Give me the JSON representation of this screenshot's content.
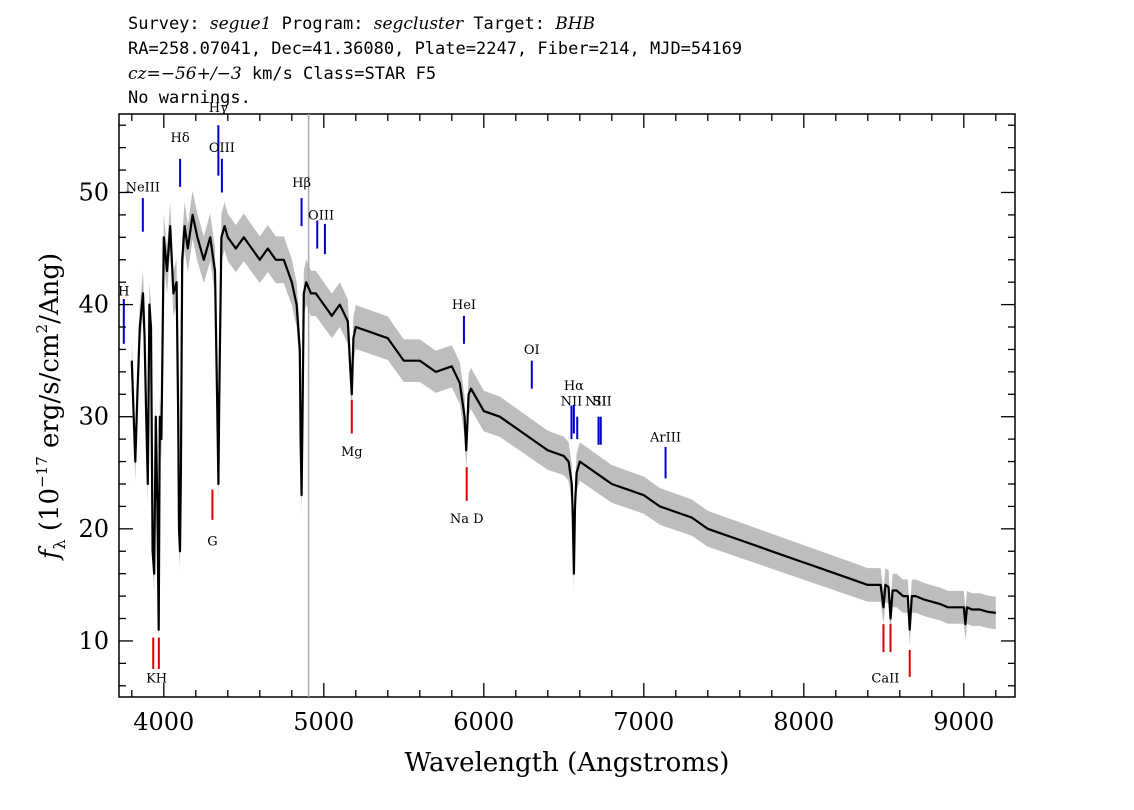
{
  "header": {
    "line1": {
      "survey_label": "Survey: ",
      "survey": "segue1",
      "program_label": " Program: ",
      "program": "segcluster",
      "target_label": " Target: ",
      "target": "BHB"
    },
    "line2": "RA=258.07041, Dec=41.36080, Plate=2247, Fiber=214, MJD=54169",
    "line3": {
      "cz_label": "cz",
      "cz_value": "=−56+/−3",
      "rest": " km/s Class=STAR F5"
    },
    "line4": "No warnings."
  },
  "colors": {
    "emission": "#0000cc",
    "absorption": "#dd0000",
    "spectrum": "#000000",
    "error_band": "#bdbdbd",
    "marker_line": "#aaaaaa"
  },
  "chart_data": {
    "type": "line",
    "xlabel": "Wavelength (Angstroms)",
    "ylabel": "f_λ (10^-17 erg/s/cm^2/Ang)",
    "xlim": [
      3720,
      9320
    ],
    "ylim": [
      5,
      57
    ],
    "x_ticks": [
      4000,
      5000,
      6000,
      7000,
      8000,
      9000
    ],
    "y_ticks": [
      10,
      20,
      30,
      40,
      50
    ],
    "vertical_marker_x": 4905,
    "series": [
      {
        "role": "flux",
        "x": [
          3800,
          3812,
          3822,
          3835,
          3850,
          3870,
          3880,
          3890,
          3900,
          3910,
          3920,
          3930,
          3940,
          3950,
          3960,
          3968,
          3975,
          3985,
          4000,
          4020,
          4040,
          4060,
          4080,
          4090,
          4095,
          4101,
          4107,
          4115,
          4130,
          4150,
          4180,
          4210,
          4250,
          4290,
          4320,
          4335,
          4341,
          4347,
          4360,
          4380,
          4400,
          4450,
          4500,
          4550,
          4600,
          4650,
          4700,
          4750,
          4800,
          4830,
          4850,
          4855,
          4861,
          4867,
          4875,
          4890,
          4920,
          4950,
          5000,
          5050,
          5100,
          5150,
          5167,
          5175,
          5185,
          5200,
          5300,
          5400,
          5500,
          5600,
          5700,
          5800,
          5850,
          5880,
          5890,
          5896,
          5905,
          5920,
          6000,
          6100,
          6200,
          6300,
          6400,
          6500,
          6530,
          6550,
          6556,
          6563,
          6570,
          6580,
          6600,
          6650,
          6700,
          6800,
          6900,
          7000,
          7100,
          7200,
          7300,
          7400,
          7500,
          7600,
          7700,
          7800,
          7900,
          8000,
          8100,
          8200,
          8300,
          8400,
          8480,
          8498,
          8510,
          8530,
          8542,
          8555,
          8580,
          8620,
          8650,
          8662,
          8675,
          8700,
          8750,
          8800,
          8850,
          8900,
          8950,
          9000,
          9010,
          9020,
          9050,
          9100,
          9150,
          9200
        ],
        "y": [
          35,
          30,
          26,
          32,
          38,
          41,
          37,
          30,
          24,
          40,
          38,
          18,
          16,
          30,
          22,
          11,
          30,
          28,
          46,
          43,
          47,
          41,
          42,
          30,
          20,
          18,
          25,
          44,
          47,
          45,
          48,
          46,
          44,
          46,
          43,
          30,
          24,
          32,
          46,
          47,
          46,
          45,
          46,
          45,
          44,
          45,
          44,
          44,
          42,
          40,
          36,
          28,
          23,
          30,
          41,
          42,
          41,
          41,
          40,
          39,
          40,
          38.5,
          34,
          32,
          37,
          38,
          37.5,
          37,
          35,
          35,
          34,
          34.5,
          33,
          30,
          27,
          29,
          32,
          32.5,
          30.5,
          30,
          29,
          28,
          27,
          26.5,
          26,
          24,
          21,
          16,
          22,
          25,
          26,
          25.5,
          25,
          24,
          23.5,
          23,
          22,
          21.5,
          21,
          20,
          19.5,
          19,
          18.5,
          18,
          17.5,
          17,
          16.5,
          16,
          15.5,
          15,
          15,
          13,
          15,
          14.8,
          12,
          14.5,
          14.5,
          14,
          14,
          11,
          14,
          14,
          13.7,
          13.5,
          13.3,
          13,
          13,
          13,
          11.5,
          13,
          12.8,
          12.8,
          12.6,
          12.5
        ]
      }
    ],
    "lines": [
      {
        "label": "H",
        "wave": 3750,
        "kind": "emission",
        "y1": 36.5,
        "y2": 40.5,
        "label_y": 40.8
      },
      {
        "label": "NeIII",
        "wave": 3869,
        "kind": "emission",
        "y1": 46.5,
        "y2": 49.5,
        "label_y": 50.1
      },
      {
        "label": "Hδ",
        "wave": 4102,
        "kind": "emission",
        "y1": 50.5,
        "y2": 53,
        "label_y": 54.5
      },
      {
        "label": "Hγ",
        "wave": 4341,
        "kind": "emission",
        "y1": 51.5,
        "y2": 56,
        "label_y": 57.2
      },
      {
        "label": "OIII",
        "wave": 4363,
        "kind": "emission",
        "y1": 50,
        "y2": 53,
        "label_y": 53.6
      },
      {
        "label": "Hβ",
        "wave": 4861,
        "kind": "emission",
        "y1": 47,
        "y2": 49.5,
        "label_y": 50.5
      },
      {
        "label": "OIII",
        "wave": 4959,
        "kind": "emission",
        "y1": 45,
        "y2": 47.5
      },
      {
        "label": "",
        "wave": 5007,
        "kind": "emission",
        "y1": 44.5,
        "y2": 47.2
      },
      {
        "label": "OIII",
        "wave": 4983,
        "kind": "label",
        "label_y": 47.6
      },
      {
        "label": "HeI",
        "wave": 5876,
        "kind": "emission",
        "y1": 36.5,
        "y2": 39,
        "label_y": 39.6
      },
      {
        "label": "OI",
        "wave": 6300,
        "kind": "emission",
        "y1": 32.5,
        "y2": 35,
        "label_y": 35.6
      },
      {
        "label": "NII",
        "wave": 6548,
        "kind": "emission",
        "y1": 28,
        "y2": 31,
        "label_y": 31
      },
      {
        "label": "Hα",
        "wave": 6563,
        "kind": "emission",
        "y1": 28.5,
        "y2": 31,
        "label_y": 32.4
      },
      {
        "label": "",
        "wave": 6584,
        "kind": "emission",
        "y1": 28,
        "y2": 30
      },
      {
        "label": "SII",
        "wave": 6717,
        "kind": "emission",
        "y1": 27.5,
        "y2": 30
      },
      {
        "label": "",
        "wave": 6731,
        "kind": "emission",
        "y1": 27.5,
        "y2": 30
      },
      {
        "label": "NII",
        "wave": 6700,
        "kind": "label",
        "label_y": 31
      },
      {
        "label": "SII",
        "wave": 6740,
        "kind": "label",
        "label_y": 31
      },
      {
        "label": "ArIII",
        "wave": 7136,
        "kind": "emission",
        "y1": 24.5,
        "y2": 27.3,
        "label_y": 27.8
      },
      {
        "label": "",
        "wave": 3934,
        "kind": "absorption",
        "y1": 7.5,
        "y2": 10.3
      },
      {
        "label": "",
        "wave": 3969,
        "kind": "absorption",
        "y1": 7.5,
        "y2": 10.3
      },
      {
        "label": "K",
        "wave": 3920,
        "kind": "label",
        "label_y": 6.3
      },
      {
        "label": "H",
        "wave": 3985,
        "kind": "label",
        "label_y": 6.3
      },
      {
        "label": "G",
        "wave": 4304,
        "kind": "absorption",
        "y1": 20.8,
        "y2": 23.5,
        "label_y": 18.5
      },
      {
        "label": "Mg",
        "wave": 5175,
        "kind": "absorption",
        "y1": 28.5,
        "y2": 31.5,
        "label_y": 26.5
      },
      {
        "label": "Na D",
        "wave": 5893,
        "kind": "absorption",
        "y1": 22.5,
        "y2": 25.5,
        "label_y": 20.5
      },
      {
        "label": "",
        "wave": 8498,
        "kind": "absorption",
        "y1": 9,
        "y2": 11.5
      },
      {
        "label": "",
        "wave": 8542,
        "kind": "absorption",
        "y1": 9,
        "y2": 11.5
      },
      {
        "label": "",
        "wave": 8662,
        "kind": "absorption",
        "y1": 6.8,
        "y2": 9.2
      },
      {
        "label": "CaII",
        "wave": 8510,
        "kind": "label",
        "label_y": 6.3
      }
    ]
  }
}
